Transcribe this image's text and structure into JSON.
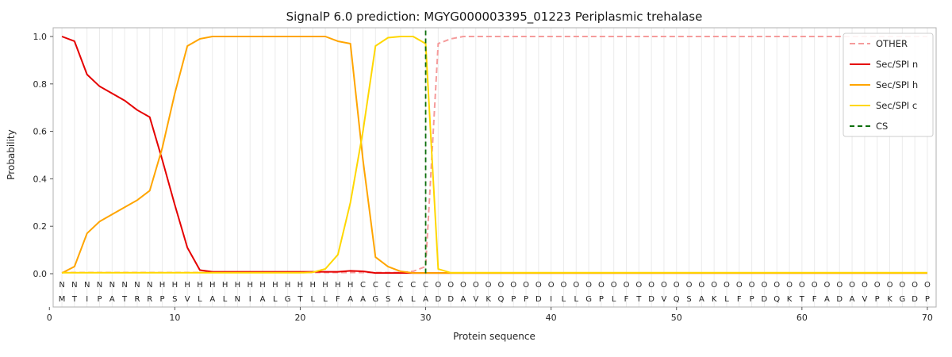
{
  "chart_data": {
    "type": "line",
    "title": "SignalP 6.0 prediction: MGYG000003395_01223 Periplasmic trehalase",
    "xlabel": "Protein sequence",
    "ylabel": "Probability",
    "x": {
      "start": 1,
      "end": 70,
      "step": 1
    },
    "xticks": [
      0,
      10,
      20,
      30,
      40,
      50,
      60,
      70
    ],
    "yticks": [
      0.0,
      0.2,
      0.4,
      0.6,
      0.8,
      1.0
    ],
    "ylim": [
      0,
      1.0
    ],
    "grid": "vertical-per-residue",
    "legend_position": "upper-right",
    "series": [
      {
        "name": "OTHER",
        "color": "#f59b9b",
        "dash": "7 4",
        "values": [
          0.005,
          0.005,
          0.005,
          0.005,
          0.005,
          0.005,
          0.005,
          0.005,
          0.005,
          0.005,
          0.005,
          0.005,
          0.005,
          0.005,
          0.005,
          0.005,
          0.005,
          0.005,
          0.005,
          0.005,
          0.005,
          0.005,
          0.005,
          0.005,
          0.005,
          0.005,
          0.005,
          0.005,
          0.01,
          0.03,
          0.97,
          0.99,
          1.0,
          1.0,
          1.0,
          1.0,
          1.0,
          1.0,
          1.0,
          1.0,
          1.0,
          1.0,
          1.0,
          1.0,
          1.0,
          1.0,
          1.0,
          1.0,
          1.0,
          1.0,
          1.0,
          1.0,
          1.0,
          1.0,
          1.0,
          1.0,
          1.0,
          1.0,
          1.0,
          1.0,
          1.0,
          1.0,
          1.0,
          1.0,
          1.0,
          1.0,
          1.0,
          1.0,
          1.0,
          1.0
        ]
      },
      {
        "name": "Sec/SPI n",
        "color": "#e50000",
        "dash": null,
        "values": [
          1.0,
          0.98,
          0.84,
          0.79,
          0.76,
          0.73,
          0.69,
          0.66,
          0.48,
          0.29,
          0.11,
          0.015,
          0.008,
          0.008,
          0.008,
          0.008,
          0.008,
          0.008,
          0.008,
          0.008,
          0.008,
          0.008,
          0.008,
          0.012,
          0.01,
          0.003,
          0.003,
          0.003,
          0.003,
          0.003,
          0.003,
          0.003,
          0.003,
          0.003,
          0.003,
          0.003,
          0.003,
          0.003,
          0.003,
          0.003,
          0.003,
          0.003,
          0.003,
          0.003,
          0.003,
          0.003,
          0.003,
          0.003,
          0.003,
          0.003,
          0.003,
          0.003,
          0.003,
          0.003,
          0.003,
          0.003,
          0.003,
          0.003,
          0.003,
          0.003,
          0.003,
          0.003,
          0.003,
          0.003,
          0.003,
          0.003,
          0.003,
          0.003,
          0.003,
          0.003
        ]
      },
      {
        "name": "Sec/SPI h",
        "color": "#ffa500",
        "dash": null,
        "values": [
          0.003,
          0.03,
          0.17,
          0.22,
          0.25,
          0.28,
          0.31,
          0.35,
          0.53,
          0.76,
          0.96,
          0.99,
          1.0,
          1.0,
          1.0,
          1.0,
          1.0,
          1.0,
          1.0,
          1.0,
          1.0,
          1.0,
          0.98,
          0.97,
          0.48,
          0.07,
          0.03,
          0.01,
          0.003,
          0.003,
          0.003,
          0.003,
          0.003,
          0.003,
          0.003,
          0.003,
          0.003,
          0.003,
          0.003,
          0.003,
          0.003,
          0.003,
          0.003,
          0.003,
          0.003,
          0.003,
          0.003,
          0.003,
          0.003,
          0.003,
          0.003,
          0.003,
          0.003,
          0.003,
          0.003,
          0.003,
          0.003,
          0.003,
          0.003,
          0.003,
          0.003,
          0.003,
          0.003,
          0.003,
          0.003,
          0.003,
          0.003,
          0.003,
          0.003,
          0.003
        ]
      },
      {
        "name": "Sec/SPI c",
        "color": "#ffd700",
        "dash": null,
        "values": [
          0.004,
          0.004,
          0.004,
          0.004,
          0.004,
          0.004,
          0.004,
          0.004,
          0.004,
          0.004,
          0.004,
          0.004,
          0.004,
          0.004,
          0.004,
          0.004,
          0.004,
          0.004,
          0.004,
          0.004,
          0.006,
          0.02,
          0.08,
          0.3,
          0.6,
          0.96,
          0.995,
          1.0,
          1.0,
          0.97,
          0.02,
          0.004,
          0.004,
          0.004,
          0.004,
          0.004,
          0.004,
          0.004,
          0.004,
          0.004,
          0.004,
          0.004,
          0.004,
          0.004,
          0.004,
          0.004,
          0.004,
          0.004,
          0.004,
          0.004,
          0.004,
          0.004,
          0.004,
          0.004,
          0.004,
          0.004,
          0.004,
          0.004,
          0.004,
          0.004,
          0.004,
          0.004,
          0.004,
          0.004,
          0.004,
          0.004,
          0.004,
          0.004,
          0.004,
          0.004
        ]
      }
    ],
    "cs_marker": {
      "label": "CS",
      "position": 30,
      "color": "#0b6e0b",
      "dash": "6 4"
    },
    "legend": [
      "OTHER",
      "Sec/SPI n",
      "Sec/SPI h",
      "Sec/SPI c",
      "CS"
    ],
    "sequence": "MTIPATRRPSVLALNIALGTLLFAAGSALADDAVKQPPDILLGPLFTDVQSAKLFPDQKTFADAVPKGDP",
    "regions": "NNNNNNNNHHHHHHHHHHHHHHHHCCCCCCOOOOOOOOOOOOOOOOOOOOOOOOOOOOOOOOOOOOOOOO",
    "region_colors": {
      "N": "#e50000",
      "H": "#ffa500",
      "C": "#ffd700",
      "O": "#a9a9a9"
    },
    "colors": {
      "grid": "#ebebeb",
      "frame": "#b0b0b0",
      "background": "#ffffff",
      "text": "#262626"
    }
  }
}
